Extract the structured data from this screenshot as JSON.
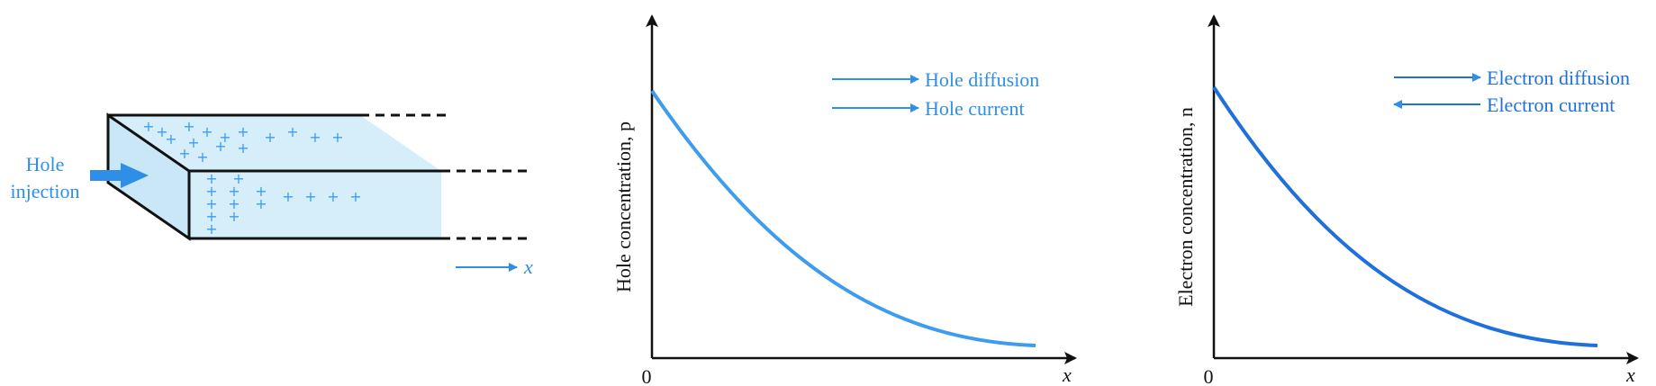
{
  "slab": {
    "injection_label_line1": "Hole",
    "injection_label_line2": "injection",
    "x_axis_label": "x",
    "charge_symbol": "+"
  },
  "hole_plot": {
    "y_axis_label": "Hole concentration, p",
    "origin_label": "0",
    "x_label": "x",
    "legend": [
      {
        "label": "Hole diffusion",
        "direction": "right"
      },
      {
        "label": "Hole current",
        "direction": "right"
      }
    ]
  },
  "electron_plot": {
    "y_axis_label": "Electron concentration, n",
    "origin_label": "0",
    "x_label": "x",
    "legend": [
      {
        "label": "Electron diffusion",
        "direction": "right"
      },
      {
        "label": "Electron current",
        "direction": "left"
      }
    ]
  },
  "colors": {
    "accent": "#2f8fe8",
    "curve_hole": "#3d9cf0",
    "curve_electron": "#1f6fdc",
    "slab_fill": "#d6eef9",
    "ink": "#111111"
  },
  "icons": [
    "injection-arrow-icon",
    "x-direction-arrow-icon",
    "axis-arrow-icon"
  ]
}
